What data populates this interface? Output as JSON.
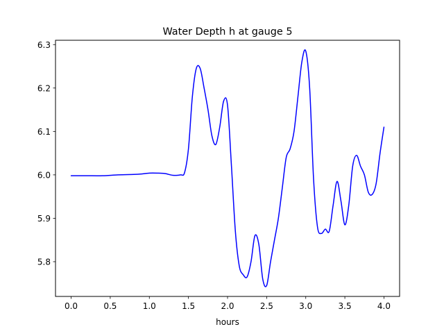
{
  "chart_data": {
    "type": "line",
    "title": "Water Depth h at gauge 5",
    "xlabel": "hours",
    "ylabel": "",
    "xlim": [
      -0.2,
      4.2
    ],
    "ylim": [
      5.72,
      6.31
    ],
    "x_ticks": [
      0.0,
      0.5,
      1.0,
      1.5,
      2.0,
      2.5,
      3.0,
      3.5,
      4.0
    ],
    "x_tick_labels": [
      "0.0",
      "0.5",
      "1.0",
      "1.5",
      "2.0",
      "2.5",
      "3.0",
      "3.5",
      "4.0"
    ],
    "y_ticks": [
      5.8,
      5.9,
      6.0,
      6.1,
      6.2,
      6.3
    ],
    "y_tick_labels": [
      "5.8",
      "5.9",
      "6.0",
      "6.1",
      "6.2",
      "6.3"
    ],
    "grid": false,
    "legend": "none",
    "series": [
      {
        "color": "#0000ff",
        "x": [
          0.0,
          0.2,
          0.4,
          0.6,
          0.8,
          0.9,
          1.0,
          1.1,
          1.2,
          1.3,
          1.4,
          1.45,
          1.5,
          1.55,
          1.6,
          1.65,
          1.7,
          1.75,
          1.8,
          1.85,
          1.9,
          1.95,
          2.0,
          2.05,
          2.1,
          2.15,
          2.2,
          2.25,
          2.3,
          2.35,
          2.4,
          2.45,
          2.5,
          2.55,
          2.6,
          2.65,
          2.7,
          2.75,
          2.8,
          2.85,
          2.9,
          2.95,
          3.0,
          3.05,
          3.1,
          3.15,
          3.2,
          3.25,
          3.3,
          3.35,
          3.4,
          3.45,
          3.5,
          3.55,
          3.6,
          3.65,
          3.7,
          3.75,
          3.8,
          3.85,
          3.9,
          3.95,
          4.0
        ],
        "y": [
          5.998,
          5.998,
          5.998,
          6.0,
          6.001,
          6.002,
          6.004,
          6.004,
          6.003,
          5.999,
          6.0,
          6.005,
          6.06,
          6.18,
          6.245,
          6.245,
          6.2,
          6.15,
          6.09,
          6.07,
          6.11,
          6.17,
          6.16,
          6.02,
          5.87,
          5.79,
          5.77,
          5.765,
          5.8,
          5.86,
          5.84,
          5.76,
          5.745,
          5.8,
          5.85,
          5.9,
          5.97,
          6.04,
          6.06,
          6.1,
          6.18,
          6.26,
          6.285,
          6.2,
          5.99,
          5.88,
          5.865,
          5.875,
          5.87,
          5.93,
          5.985,
          5.94,
          5.885,
          5.93,
          6.02,
          6.045,
          6.02,
          6.0,
          5.96,
          5.955,
          5.98,
          6.05,
          6.11
        ]
      }
    ]
  }
}
